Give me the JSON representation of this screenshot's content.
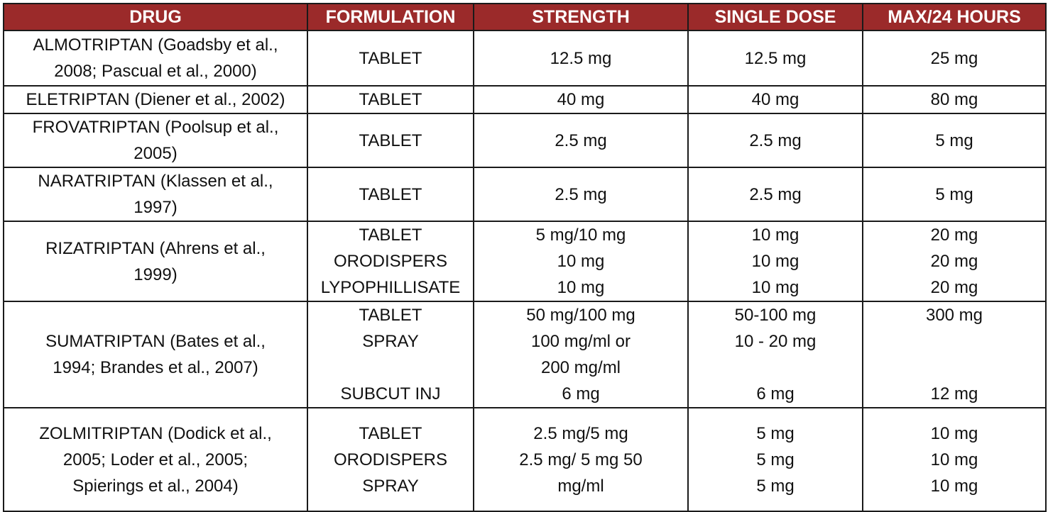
{
  "headers": [
    "DRUG",
    "FORMULATION",
    "STRENGTH",
    "SINGLE DOSE",
    "MAX/24 HOURS"
  ],
  "rows": [
    {
      "drug": [
        "ALMOTRIPTAN (Goadsby et al.,",
        "2008; Pascual et al., 2000)"
      ],
      "formulation": [
        "TABLET"
      ],
      "strength": [
        "12.5 mg"
      ],
      "single_dose": [
        "12.5 mg"
      ],
      "max_24h": [
        "25 mg"
      ]
    },
    {
      "drug": [
        "ELETRIPTAN (Diener et al., 2002)"
      ],
      "formulation": [
        "TABLET"
      ],
      "strength": [
        "40 mg"
      ],
      "single_dose": [
        "40 mg"
      ],
      "max_24h": [
        "80 mg"
      ]
    },
    {
      "drug": [
        "FROVATRIPTAN (Poolsup et al.,",
        "2005)"
      ],
      "formulation": [
        "TABLET"
      ],
      "strength": [
        "2.5 mg"
      ],
      "single_dose": [
        "2.5 mg"
      ],
      "max_24h": [
        "5 mg"
      ]
    },
    {
      "drug": [
        "NARATRIPTAN (Klassen et al.,",
        "1997)"
      ],
      "formulation": [
        "TABLET"
      ],
      "strength": [
        "2.5 mg"
      ],
      "single_dose": [
        "2.5 mg"
      ],
      "max_24h": [
        "5 mg"
      ]
    },
    {
      "drug": [
        "RIZATRIPTAN (Ahrens et al.,",
        "1999)"
      ],
      "formulation": [
        "TABLET",
        "ORODISPERS",
        "LYPOPHILLISATE"
      ],
      "strength": [
        "5 mg/10 mg",
        "10 mg",
        "10 mg"
      ],
      "single_dose": [
        "10 mg",
        "10 mg",
        "10 mg"
      ],
      "max_24h": [
        "20 mg",
        "20 mg",
        "20 mg"
      ]
    },
    {
      "drug": [
        "SUMATRIPTAN (Bates et al.,",
        "1994; Brandes et al., 2007)"
      ],
      "formulation": [
        "TABLET",
        "SPRAY",
        "",
        "SUBCUT INJ"
      ],
      "strength": [
        "50 mg/100 mg",
        "100 mg/ml or",
        "200 mg/ml",
        "6 mg"
      ],
      "single_dose": [
        "50-100 mg",
        "10 - 20 mg",
        "",
        "6 mg"
      ],
      "max_24h": [
        "300 mg",
        "",
        "",
        "12 mg"
      ]
    },
    {
      "drug": [
        "ZOLMITRIPTAN (Dodick et al.,",
        "2005; Loder et al., 2005;",
        "Spierings et al., 2004)"
      ],
      "formulation": [
        "TABLET",
        "ORODISPERS",
        "SPRAY"
      ],
      "strength": [
        "2.5 mg/5 mg",
        "2.5 mg/ 5 mg 50",
        "mg/ml"
      ],
      "single_dose": [
        "5 mg",
        "5 mg",
        "5 mg"
      ],
      "max_24h": [
        "10 mg",
        "10 mg",
        "10 mg"
      ]
    }
  ]
}
